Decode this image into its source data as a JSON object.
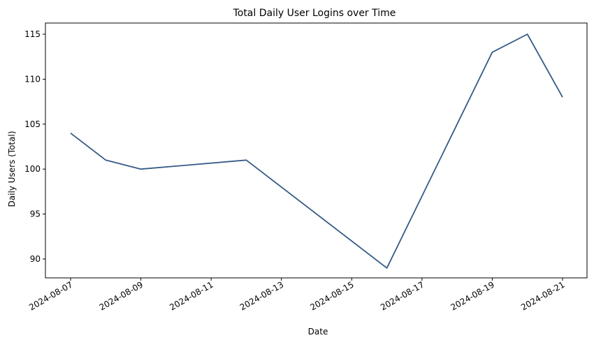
{
  "chart_data": {
    "type": "line",
    "title": "Total Daily User Logins over Time",
    "xlabel": "Date",
    "ylabel": "Daily Users (Total)",
    "x_ticks": [
      "2024-08-07",
      "2024-08-09",
      "2024-08-11",
      "2024-08-13",
      "2024-08-15",
      "2024-08-17",
      "2024-08-19",
      "2024-08-21"
    ],
    "y_ticks": [
      90,
      95,
      100,
      105,
      110,
      115
    ],
    "xlim": [
      "2024-08-06",
      "2024-08-21"
    ],
    "ylim": [
      87.7,
      116.3
    ],
    "grid": false,
    "line_color": "#355a87",
    "series": [
      {
        "x": [
          "2024-08-07",
          "2024-08-08",
          "2024-08-09",
          "2024-08-12",
          "2024-08-16",
          "2024-08-19",
          "2024-08-20",
          "2024-08-21"
        ],
        "values": [
          104,
          101,
          100,
          101,
          89,
          113,
          115,
          108
        ]
      }
    ]
  }
}
